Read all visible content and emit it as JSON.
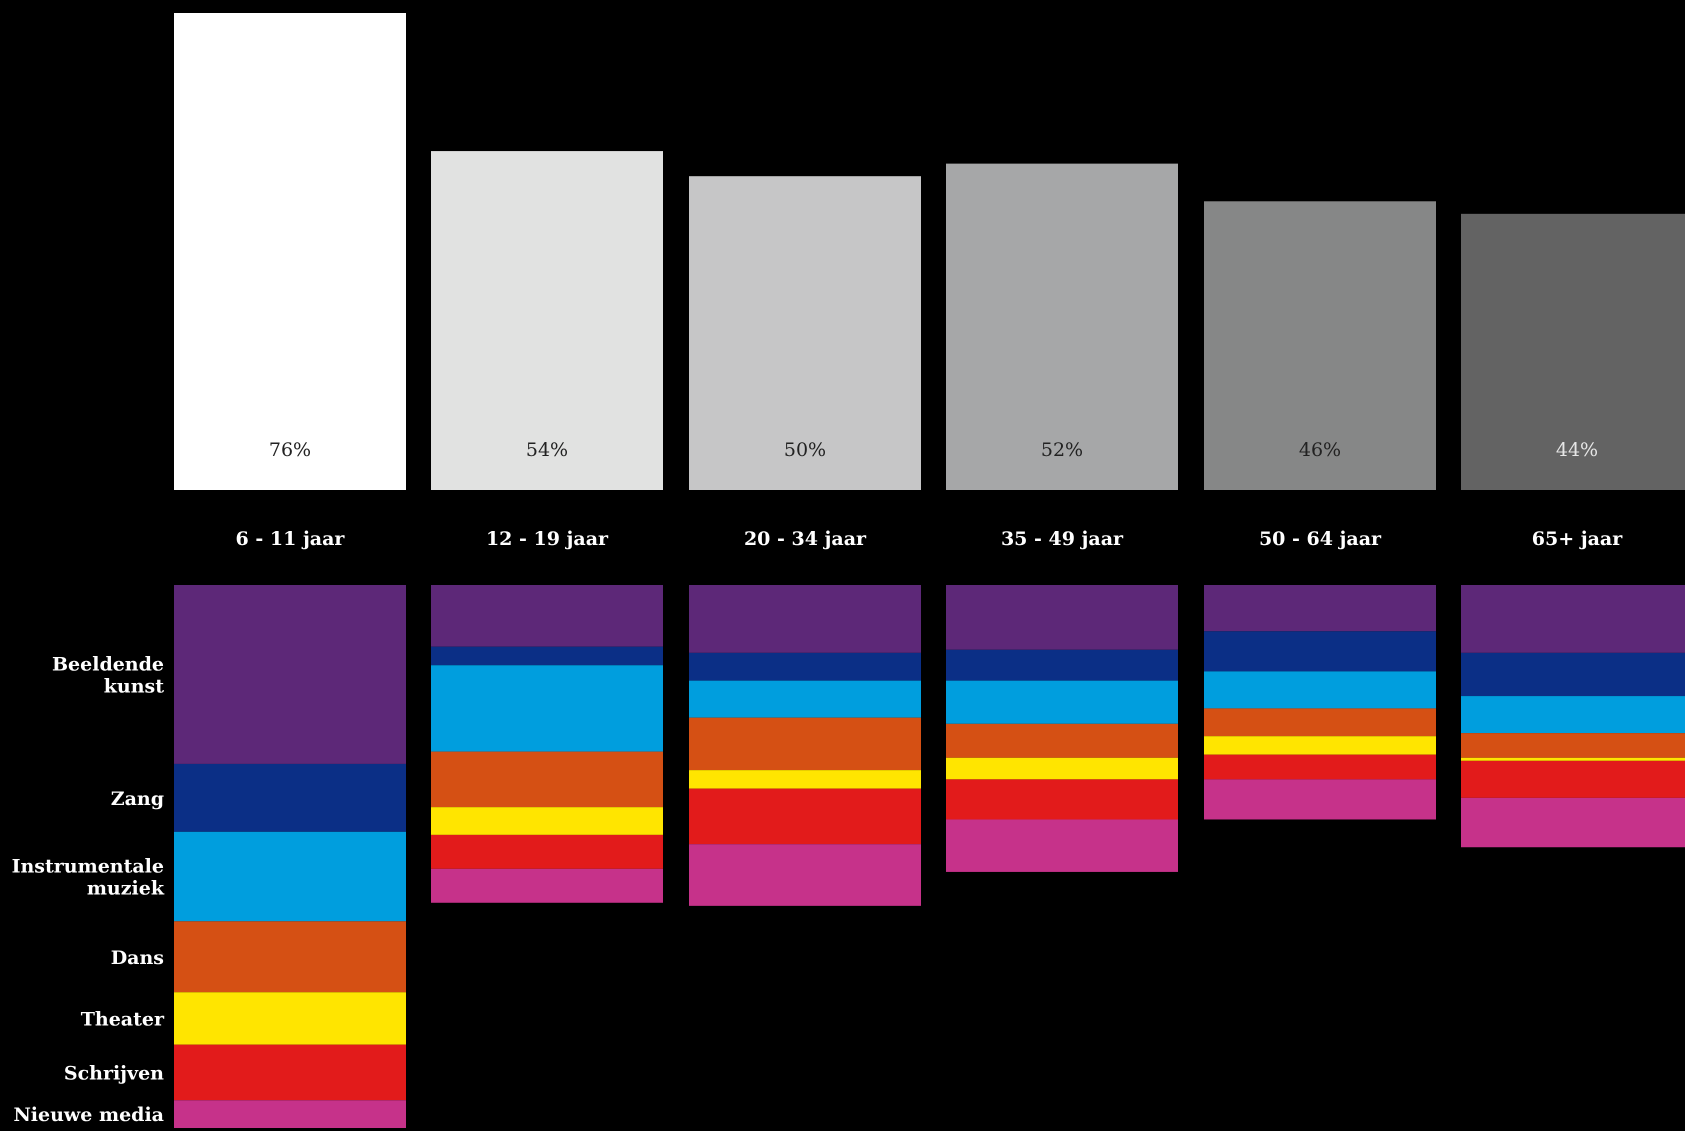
{
  "chart_data": [
    {
      "type": "bar",
      "categories": [
        "6 - 11 jaar",
        "12 - 19 jaar",
        "20 - 34 jaar",
        "35 - 49 jaar",
        "50 - 64 jaar",
        "65+ jaar"
      ],
      "values": [
        76,
        54,
        50,
        52,
        46,
        44
      ],
      "value_labels": [
        "76%",
        "54%",
        "50%",
        "52%",
        "46%",
        "44%"
      ],
      "bar_colors": [
        "#ffffff",
        "#e1e2e1",
        "#c6c6c7",
        "#a6a7a8",
        "#868787",
        "#636363"
      ],
      "label_colors": [
        "#222222",
        "#222222",
        "#222222",
        "#222222",
        "#222222",
        "#e6e6e6"
      ],
      "ylim": [
        0,
        76
      ]
    },
    {
      "type": "bar",
      "stacked": true,
      "categories": [
        "6 - 11 jaar",
        "12 - 19 jaar",
        "20 - 34 jaar",
        "35 - 49 jaar",
        "50 - 64 jaar",
        "65+ jaar"
      ],
      "series": [
        {
          "name": "Beeldende kunst",
          "lines": [
            "Beeldende",
            "kunst"
          ],
          "color": "#5d2878",
          "values": [
            29,
            10,
            11,
            10.5,
            7.5,
            11
          ]
        },
        {
          "name": "Zang",
          "lines": [
            "Zang"
          ],
          "color": "#0b2f86",
          "values": [
            11,
            3,
            4.5,
            5,
            6.5,
            7
          ]
        },
        {
          "name": "Instrumentale muziek",
          "lines": [
            "Instrumentale",
            "muziek"
          ],
          "color": "#009ede",
          "values": [
            14.5,
            14,
            6,
            7,
            6,
            6
          ]
        },
        {
          "name": "Dans",
          "lines": [
            "Dans"
          ],
          "color": "#d55014",
          "values": [
            11.5,
            9,
            8.5,
            5.5,
            4.5,
            4
          ]
        },
        {
          "name": "Theater",
          "lines": [
            "Theater"
          ],
          "color": "#ffe500",
          "values": [
            8.5,
            4.5,
            3,
            3.5,
            3,
            0.5
          ]
        },
        {
          "name": "Schrijven",
          "lines": [
            "Schrijven"
          ],
          "color": "#e21b1b",
          "values": [
            9,
            5.5,
            9,
            6.5,
            4,
            6
          ]
        },
        {
          "name": "Nieuwe media",
          "lines": [
            "Nieuwe media"
          ],
          "color": "#c6328a",
          "values": [
            4.5,
            5.5,
            10,
            8.5,
            6.5,
            8
          ]
        }
      ]
    }
  ]
}
